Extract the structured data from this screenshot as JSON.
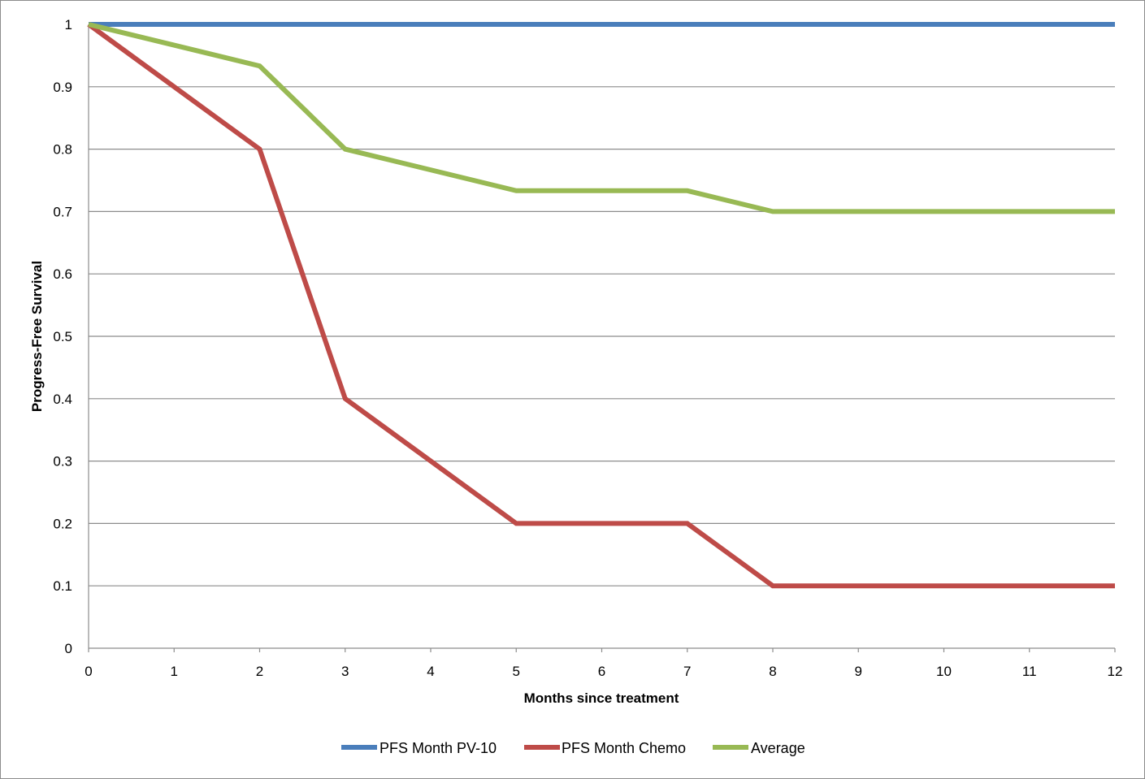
{
  "chart_data": {
    "type": "line",
    "title": "",
    "xlabel": "Months since treatment",
    "ylabel": "Progress-Free Survival",
    "x": [
      0,
      2,
      3,
      5,
      7,
      8,
      12
    ],
    "xticks": [
      "0",
      "1",
      "2",
      "3",
      "4",
      "5",
      "6",
      "7",
      "8",
      "9",
      "10",
      "11",
      "12"
    ],
    "yticks": [
      "0",
      "0.1",
      "0.2",
      "0.3",
      "0.4",
      "0.5",
      "0.6",
      "0.7",
      "0.8",
      "0.9",
      "1"
    ],
    "xlim": [
      0,
      12
    ],
    "ylim": [
      0,
      1
    ],
    "grid": "horizontal",
    "legend_position": "bottom",
    "series": [
      {
        "name": "PFS Month PV-10",
        "color": "#4a7ebb",
        "values": [
          1,
          1,
          1,
          1,
          1,
          1,
          1
        ]
      },
      {
        "name": "PFS Month Chemo",
        "color": "#be4b48",
        "values": [
          1,
          0.8,
          0.4,
          0.2,
          0.2,
          0.1,
          0.1
        ]
      },
      {
        "name": "Average",
        "color": "#98b954",
        "values": [
          1,
          0.9333,
          0.8,
          0.7333,
          0.7333,
          0.7,
          0.7
        ]
      }
    ]
  }
}
